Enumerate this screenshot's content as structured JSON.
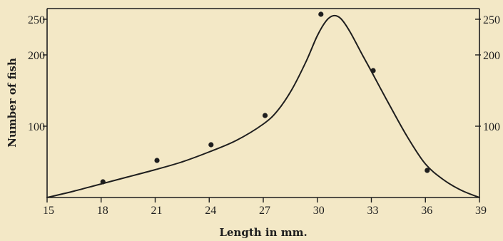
{
  "chart_data": {
    "type": "scatter",
    "title": "",
    "xlabel": "Length in mm.",
    "ylabel": "Number of fish",
    "xlim": [
      15,
      39
    ],
    "ylim": [
      0,
      265
    ],
    "x_ticks": [
      "15",
      "18",
      "21",
      "24",
      "27",
      "30",
      "33",
      "36",
      "39"
    ],
    "y_ticks_left": [
      "100",
      "200",
      "250"
    ],
    "y_ticks_right": [
      "100",
      "200",
      "250"
    ],
    "grid": false,
    "series": [
      {
        "type": "scatter",
        "x": [
          18.1,
          21.1,
          24.1,
          27.1,
          30.2,
          33.1,
          36.1
        ],
        "y": [
          22,
          52,
          74,
          115,
          257,
          178,
          38
        ]
      },
      {
        "type": "line",
        "x": [
          15,
          16.5,
          18,
          19.5,
          21,
          22.5,
          24,
          25.5,
          27,
          27.8,
          28.6,
          29.4,
          30,
          30.5,
          30.9,
          31.3,
          31.8,
          32.5,
          33,
          34,
          35,
          36,
          37,
          38,
          39
        ],
        "y": [
          0,
          9,
          19,
          29,
          39,
          50,
          64,
          80,
          103,
          122,
          152,
          192,
          227,
          248,
          255,
          251,
          233,
          200,
          177,
          130,
          85,
          47,
          25,
          10,
          0
        ]
      }
    ]
  }
}
